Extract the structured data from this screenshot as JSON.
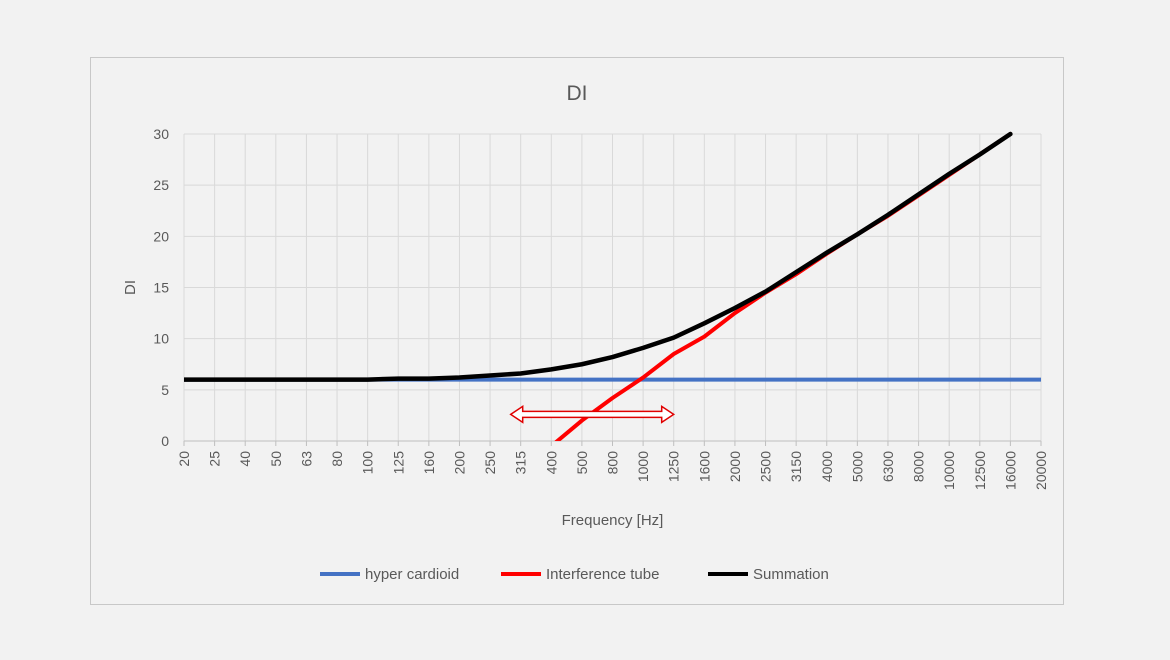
{
  "chart_data": {
    "type": "line",
    "title": "DI",
    "xlabel": "Frequency [Hz]",
    "ylabel": "DI",
    "categories": [
      "20",
      "25",
      "40",
      "50",
      "63",
      "80",
      "100",
      "125",
      "160",
      "200",
      "250",
      "315",
      "400",
      "500",
      "800",
      "1000",
      "1250",
      "1600",
      "2000",
      "2500",
      "3150",
      "4000",
      "5000",
      "6300",
      "8000",
      "10000",
      "12500",
      "16000",
      "20000"
    ],
    "ylim": [
      0,
      30
    ],
    "yticks": [
      0,
      5,
      10,
      15,
      20,
      25,
      30
    ],
    "grid": true,
    "legend_position": "bottom",
    "series": [
      {
        "name": "hyper cardioid",
        "color": "#4472c4",
        "values": [
          6,
          6,
          6,
          6,
          6,
          6,
          6,
          6,
          6,
          6,
          6,
          6,
          6,
          6,
          6,
          6,
          6,
          6,
          6,
          6,
          6,
          6,
          6,
          6,
          6,
          6,
          6,
          6,
          6
        ]
      },
      {
        "name": "Interference tube",
        "color": "#ff0000",
        "values": [
          null,
          null,
          null,
          null,
          null,
          null,
          null,
          null,
          null,
          null,
          null,
          null,
          -0.5,
          2,
          4.2,
          6.2,
          8.5,
          10.2,
          12.5,
          14.5,
          16.3,
          18.3,
          20.2,
          22,
          24,
          26,
          28,
          30,
          null
        ]
      },
      {
        "name": "Summation",
        "color": "#000000",
        "values": [
          6,
          6,
          6,
          6,
          6,
          6,
          6,
          6.1,
          6.1,
          6.2,
          6.4,
          6.6,
          7,
          7.5,
          8.2,
          9.1,
          10.1,
          11.5,
          13,
          14.6,
          16.5,
          18.4,
          20.2,
          22.1,
          24.1,
          26.1,
          28,
          30,
          null
        ]
      }
    ],
    "annotation": {
      "type": "double-arrow",
      "color": "#e00000",
      "x_from": "315",
      "x_to": "1250",
      "y": 2.6
    }
  }
}
